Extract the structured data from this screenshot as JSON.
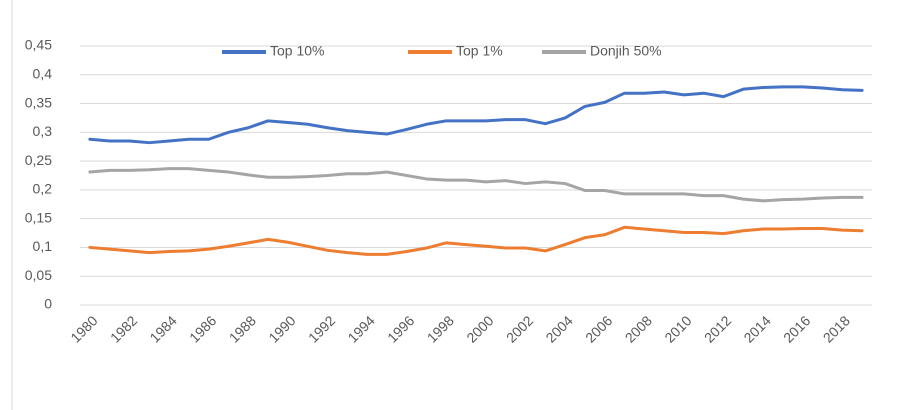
{
  "chart_data": {
    "type": "line",
    "categories": [
      "1980",
      null,
      "1982",
      null,
      "1984",
      null,
      "1986",
      null,
      "1988",
      null,
      "1990",
      null,
      "1992",
      null,
      "1994",
      null,
      "1996",
      null,
      "1998",
      null,
      "2000",
      null,
      "2002",
      null,
      "2004",
      null,
      "2006",
      null,
      "2008",
      null,
      "2010",
      null,
      "2012",
      null,
      "2014",
      null,
      "2016",
      null,
      "2018",
      null
    ],
    "series": [
      {
        "name": "Top 10%",
        "color": "#4472c4",
        "values": [
          0.288,
          0.285,
          0.285,
          0.282,
          0.285,
          0.288,
          0.288,
          0.3,
          0.308,
          0.32,
          0.317,
          0.314,
          0.308,
          0.303,
          0.3,
          0.297,
          0.305,
          0.314,
          0.32,
          0.32,
          0.32,
          0.322,
          0.322,
          0.315,
          0.325,
          0.345,
          0.352,
          0.368,
          0.368,
          0.37,
          0.365,
          0.368,
          0.362,
          0.375,
          0.378,
          0.379,
          0.379,
          0.377,
          0.374,
          0.373
        ]
      },
      {
        "name": "Top 1%",
        "color": "#ed7d31",
        "values": [
          0.1,
          0.097,
          0.094,
          0.091,
          0.093,
          0.094,
          0.097,
          0.102,
          0.108,
          0.114,
          0.109,
          0.102,
          0.095,
          0.091,
          0.088,
          0.088,
          0.093,
          0.099,
          0.108,
          0.105,
          0.102,
          0.099,
          0.099,
          0.094,
          0.105,
          0.117,
          0.122,
          0.135,
          0.132,
          0.129,
          0.126,
          0.126,
          0.124,
          0.129,
          0.132,
          0.132,
          0.133,
          0.133,
          0.13,
          0.129
        ]
      },
      {
        "name": "Donjih 50%",
        "color": "#a5a5a5",
        "values": [
          0.231,
          0.234,
          0.234,
          0.235,
          0.237,
          0.237,
          0.234,
          0.231,
          0.226,
          0.222,
          0.222,
          0.223,
          0.225,
          0.228,
          0.228,
          0.231,
          0.225,
          0.219,
          0.217,
          0.217,
          0.214,
          0.216,
          0.211,
          0.214,
          0.211,
          0.199,
          0.199,
          0.193,
          0.193,
          0.193,
          0.193,
          0.19,
          0.19,
          0.184,
          0.181,
          0.183,
          0.184,
          0.186,
          0.187,
          0.187
        ]
      }
    ],
    "ylim": [
      0,
      0.45
    ],
    "yticks": [
      0,
      {
        "value": 0.05,
        "label": "0,05"
      },
      {
        "value": 0.1,
        "label": "0,1"
      },
      {
        "value": 0.15,
        "label": "0,15"
      },
      {
        "value": 0.2,
        "label": "0,2"
      },
      {
        "value": 0.25,
        "label": "0,25"
      },
      {
        "value": 0.3,
        "label": "0,3"
      },
      {
        "value": 0.35,
        "label": "0,35"
      },
      {
        "value": 0.4,
        "label": "0,4"
      },
      {
        "value": 0.45,
        "label": "0,45"
      }
    ],
    "grid": true,
    "legend": "top"
  }
}
